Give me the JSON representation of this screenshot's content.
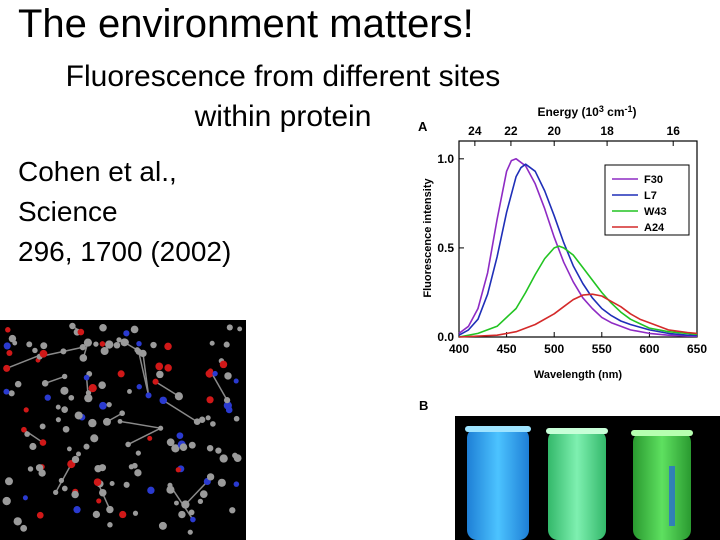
{
  "slide": {
    "title": "The environment matters!",
    "subtitle": "Fluorescence from different sites within protein",
    "citation": [
      "Cohen et al.,",
      "Science",
      "296, 1700 (2002)"
    ]
  },
  "panel_b_label": "B",
  "chart_data": {
    "type": "line",
    "panel_label": "A",
    "title": "",
    "xlabel": "Wavelength (nm)",
    "ylabel": "Fluorescence intensity",
    "top_axis_label": "Energy (10^3 cm^-1)",
    "top_axis_label_parts": [
      "Energy (10",
      "3",
      " cm",
      "-1",
      ")"
    ],
    "xlim": [
      400,
      650
    ],
    "ylim": [
      0,
      1.1
    ],
    "x_ticks": [
      400,
      450,
      500,
      550,
      600,
      650
    ],
    "y_ticks": [
      "0.0",
      "0.5",
      "1.0"
    ],
    "y_tick_values": [
      0,
      0.5,
      1.0
    ],
    "top_ticks": [
      "24",
      "22",
      "20",
      "18",
      "16"
    ],
    "top_tick_values": [
      24,
      22,
      20,
      18,
      16
    ],
    "legend_position": "top-right",
    "grid": false,
    "series": [
      {
        "name": "F30",
        "color": "#8e2bc4",
        "x": [
          400,
          410,
          420,
          430,
          440,
          450,
          455,
          460,
          470,
          480,
          490,
          500,
          510,
          520,
          530,
          540,
          550,
          560,
          570,
          580,
          600,
          620,
          640,
          650
        ],
        "y": [
          0.02,
          0.06,
          0.16,
          0.36,
          0.66,
          0.93,
          0.99,
          1.0,
          0.96,
          0.86,
          0.72,
          0.56,
          0.42,
          0.31,
          0.22,
          0.16,
          0.11,
          0.08,
          0.06,
          0.04,
          0.02,
          0.01,
          0.005,
          0.004
        ]
      },
      {
        "name": "L7",
        "color": "#1f2fb8",
        "x": [
          400,
          410,
          420,
          430,
          440,
          450,
          460,
          465,
          470,
          480,
          490,
          500,
          510,
          520,
          530,
          540,
          550,
          560,
          570,
          580,
          600,
          620,
          640,
          650
        ],
        "y": [
          0.01,
          0.04,
          0.1,
          0.24,
          0.45,
          0.7,
          0.9,
          0.95,
          0.97,
          0.93,
          0.82,
          0.68,
          0.53,
          0.4,
          0.3,
          0.22,
          0.16,
          0.12,
          0.09,
          0.07,
          0.04,
          0.02,
          0.01,
          0.008
        ]
      },
      {
        "name": "W43",
        "color": "#22c422",
        "x": [
          400,
          420,
          440,
          460,
          470,
          480,
          490,
          500,
          505,
          510,
          520,
          530,
          540,
          550,
          560,
          570,
          580,
          600,
          620,
          640,
          650
        ],
        "y": [
          0.0,
          0.02,
          0.06,
          0.16,
          0.25,
          0.35,
          0.44,
          0.5,
          0.51,
          0.5,
          0.46,
          0.39,
          0.32,
          0.25,
          0.19,
          0.14,
          0.1,
          0.05,
          0.03,
          0.02,
          0.015
        ]
      },
      {
        "name": "A24",
        "color": "#d42a2a",
        "x": [
          400,
          440,
          460,
          480,
          500,
          510,
          520,
          530,
          540,
          550,
          560,
          570,
          580,
          590,
          600,
          620,
          640,
          650
        ],
        "y": [
          0.0,
          0.01,
          0.03,
          0.07,
          0.13,
          0.17,
          0.21,
          0.235,
          0.24,
          0.23,
          0.2,
          0.17,
          0.13,
          0.1,
          0.08,
          0.04,
          0.025,
          0.02
        ]
      }
    ]
  },
  "images": {
    "protein_structure": "ball-and-stick protein model",
    "vials": [
      {
        "color": "#2ea6f2"
      },
      {
        "color": "#56d88a"
      },
      {
        "color": "#3ec24a"
      }
    ]
  }
}
